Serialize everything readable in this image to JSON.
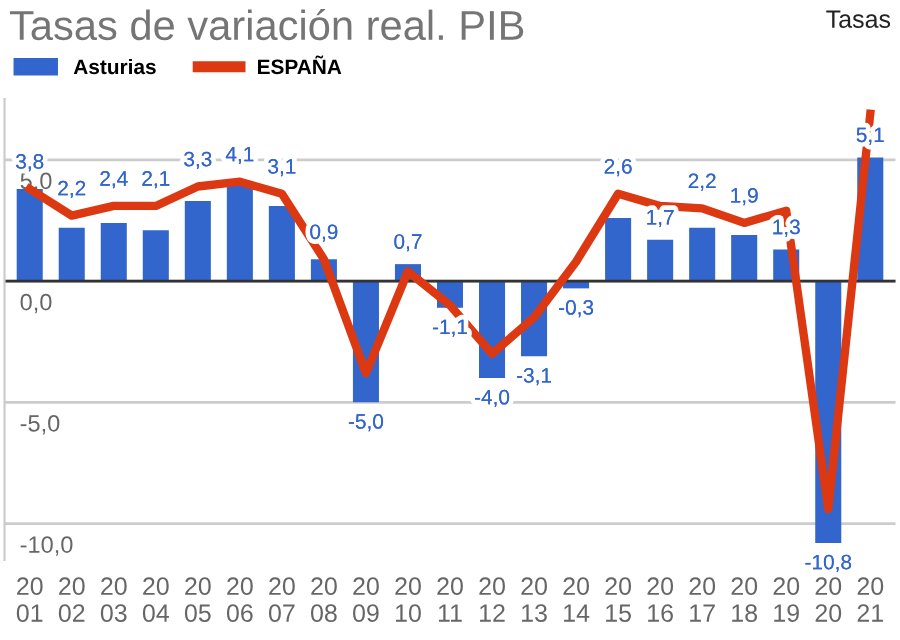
{
  "chart_data": {
    "type": "bar",
    "title": "Tasas de variación real. PIB",
    "ylabel": "Tasas",
    "categories": [
      "20\n01",
      "20\n02",
      "20\n03",
      "20\n04",
      "20\n05",
      "20\n06",
      "20\n07",
      "20\n08",
      "20\n09",
      "20\n10",
      "20\n11",
      "20\n12",
      "20\n13",
      "20\n14",
      "20\n15",
      "20\n16",
      "20\n17",
      "20\n18",
      "20\n19",
      "20\n20",
      "20\n21"
    ],
    "series": [
      {
        "name": "Asturias",
        "color": "#3366cc",
        "values": [
          3.8,
          2.2,
          2.4,
          2.1,
          3.3,
          4.1,
          3.1,
          0.9,
          -5.0,
          0.7,
          -1.1,
          -4.0,
          -3.1,
          -0.3,
          2.6,
          1.7,
          2.2,
          1.9,
          1.3,
          -10.8,
          5.1
        ],
        "value_labels": [
          "3,8",
          "2,2",
          "2,4",
          "2,1",
          "3,3",
          "4,1",
          "3,1",
          "0,9",
          "-5,0",
          "0,7",
          "-1,1",
          "-4,0",
          "-3,1",
          "-0,3",
          "2,6",
          "1,7",
          "2,2",
          "1,9",
          "1,3",
          "-10,8",
          "5,1"
        ]
      },
      {
        "name": "ESPAÑA",
        "type": "line",
        "color": "#dc3912",
        "values": [
          3.8,
          2.7,
          3.1,
          3.1,
          3.9,
          4.1,
          3.6,
          0.9,
          -3.8,
          0.4,
          -1.0,
          -3.0,
          -1.5,
          0.8,
          3.6,
          3.1,
          3.0,
          2.4,
          2.9,
          -9.4,
          6.9
        ]
      }
    ],
    "ylim": [
      -11.5,
      7.5
    ],
    "yticks": [
      {
        "value": -10,
        "label": "-10,0"
      },
      {
        "value": -5,
        "label": "-5,0"
      },
      {
        "value": 0,
        "label": "0,0"
      },
      {
        "value": 5,
        "label": "5,0"
      }
    ],
    "grid": "y",
    "legend": "top left",
    "marker": "none",
    "line_style": "solid"
  }
}
